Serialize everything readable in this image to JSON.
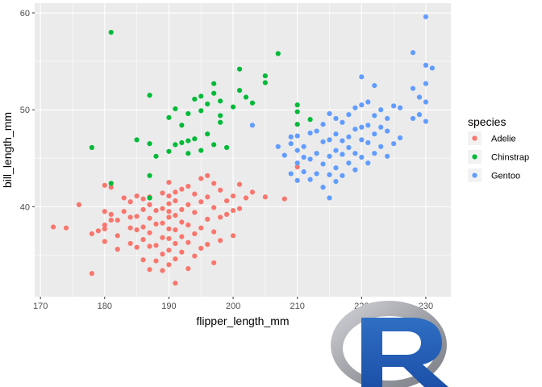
{
  "chart_data": {
    "type": "scatter",
    "xlabel": "flipper_length_mm",
    "ylabel": "bill_length_mm",
    "xlim": [
      169.1,
      233.9
    ],
    "ylim": [
      30.7,
      61.0
    ],
    "x_ticks": [
      170,
      180,
      190,
      200,
      210,
      220,
      230
    ],
    "y_ticks": [
      40,
      50,
      60
    ],
    "x_minor_ticks": [
      175,
      185,
      195,
      205,
      215,
      225
    ],
    "y_minor_ticks": [
      35,
      45,
      55
    ],
    "grid": true,
    "legend": {
      "title": "species",
      "position": "right"
    },
    "series": [
      {
        "name": "Adelie",
        "color": "#F8766D",
        "points": [
          [
            172,
            37.9
          ],
          [
            174,
            37.8
          ],
          [
            176,
            40.2
          ],
          [
            178,
            33.1
          ],
          [
            178,
            37.2
          ],
          [
            179,
            37.5
          ],
          [
            180,
            36.4
          ],
          [
            180,
            37.7
          ],
          [
            180,
            38.1
          ],
          [
            180,
            39.5
          ],
          [
            180,
            42.2
          ],
          [
            181,
            38.6
          ],
          [
            181,
            39.2
          ],
          [
            181,
            42.0
          ],
          [
            182,
            35.6
          ],
          [
            182,
            37.0
          ],
          [
            182,
            38.6
          ],
          [
            183,
            39.5
          ],
          [
            183,
            40.9
          ],
          [
            184,
            36.2
          ],
          [
            184,
            37.8
          ],
          [
            184,
            38.9
          ],
          [
            184,
            40.5
          ],
          [
            185,
            35.8
          ],
          [
            185,
            37.6
          ],
          [
            185,
            39.0
          ],
          [
            185,
            41.1
          ],
          [
            186,
            34.5
          ],
          [
            186,
            36.6
          ],
          [
            186,
            37.9
          ],
          [
            186,
            39.7
          ],
          [
            186,
            40.8
          ],
          [
            187,
            33.5
          ],
          [
            187,
            35.9
          ],
          [
            187,
            37.3
          ],
          [
            187,
            38.8
          ],
          [
            187,
            40.2
          ],
          [
            187,
            41.0
          ],
          [
            188,
            34.4
          ],
          [
            188,
            36.0
          ],
          [
            188,
            38.2
          ],
          [
            188,
            39.6
          ],
          [
            189,
            33.4
          ],
          [
            189,
            35.1
          ],
          [
            189,
            36.8
          ],
          [
            189,
            38.3
          ],
          [
            189,
            39.8
          ],
          [
            189,
            41.4
          ],
          [
            190,
            34.0
          ],
          [
            190,
            35.5
          ],
          [
            190,
            36.7
          ],
          [
            190,
            37.7
          ],
          [
            190,
            38.9
          ],
          [
            190,
            39.5
          ],
          [
            190,
            40.3
          ],
          [
            190,
            41.1
          ],
          [
            190,
            42.5
          ],
          [
            191,
            32.1
          ],
          [
            191,
            34.6
          ],
          [
            191,
            36.2
          ],
          [
            191,
            37.6
          ],
          [
            191,
            39.1
          ],
          [
            191,
            40.6
          ],
          [
            191,
            41.5
          ],
          [
            192,
            35.3
          ],
          [
            192,
            36.9
          ],
          [
            192,
            38.4
          ],
          [
            192,
            39.7
          ],
          [
            192,
            41.8
          ],
          [
            193,
            33.6
          ],
          [
            193,
            36.3
          ],
          [
            193,
            38.1
          ],
          [
            193,
            40.2
          ],
          [
            193,
            42.1
          ],
          [
            194,
            34.9
          ],
          [
            194,
            37.2
          ],
          [
            194,
            39.4
          ],
          [
            194,
            41.3
          ],
          [
            195,
            35.7
          ],
          [
            195,
            37.8
          ],
          [
            195,
            40.5
          ],
          [
            195,
            42.9
          ],
          [
            196,
            36.1
          ],
          [
            196,
            38.7
          ],
          [
            196,
            41.0
          ],
          [
            196,
            43.2
          ],
          [
            197,
            34.2
          ],
          [
            197,
            37.4
          ],
          [
            197,
            39.9
          ],
          [
            197,
            42.4
          ],
          [
            198,
            36.5
          ],
          [
            198,
            38.9
          ],
          [
            198,
            41.7
          ],
          [
            199,
            39.2
          ],
          [
            199,
            40.6
          ],
          [
            200,
            37.0
          ],
          [
            200,
            39.6
          ],
          [
            200,
            41.1
          ],
          [
            201,
            39.8
          ],
          [
            201,
            42.3
          ],
          [
            202,
            40.9
          ],
          [
            203,
            41.5
          ],
          [
            205,
            41.0
          ],
          [
            210,
            44.1
          ],
          [
            208,
            40.8
          ]
        ]
      },
      {
        "name": "Chinstrap",
        "color": "#00BA38",
        "points": [
          [
            178,
            46.1
          ],
          [
            181,
            58.0
          ],
          [
            181,
            42.4
          ],
          [
            185,
            46.9
          ],
          [
            187,
            40.9
          ],
          [
            187,
            43.2
          ],
          [
            187,
            51.5
          ],
          [
            187,
            46.5
          ],
          [
            188,
            45.2
          ],
          [
            190,
            45.7
          ],
          [
            190,
            49.2
          ],
          [
            191,
            46.4
          ],
          [
            191,
            50.1
          ],
          [
            192,
            46.6
          ],
          [
            192,
            48.4
          ],
          [
            193,
            46.8
          ],
          [
            193,
            49.6
          ],
          [
            193,
            45.5
          ],
          [
            194,
            51.1
          ],
          [
            194,
            47.0
          ],
          [
            195,
            51.4
          ],
          [
            195,
            45.8
          ],
          [
            195,
            49.9
          ],
          [
            196,
            50.6
          ],
          [
            196,
            47.5
          ],
          [
            197,
            51.7
          ],
          [
            197,
            52.7
          ],
          [
            197,
            46.4
          ],
          [
            198,
            50.9
          ],
          [
            198,
            49.4
          ],
          [
            199,
            46.1
          ],
          [
            200,
            50.3
          ],
          [
            201,
            52.0
          ],
          [
            202,
            51.3
          ],
          [
            205,
            53.5
          ],
          [
            205,
            52.8
          ],
          [
            207,
            55.8
          ],
          [
            210,
            50.5
          ],
          [
            210,
            48.5
          ],
          [
            212,
            49.0
          ],
          [
            210,
            49.8
          ],
          [
            203,
            50.7
          ],
          [
            201,
            54.2
          ],
          [
            198,
            48.7
          ]
        ]
      },
      {
        "name": "Gentoo",
        "color": "#619CFF",
        "points": [
          [
            203,
            48.4
          ],
          [
            207,
            46.2
          ],
          [
            208,
            45.3
          ],
          [
            209,
            43.4
          ],
          [
            209,
            46.5
          ],
          [
            209,
            47.2
          ],
          [
            210,
            42.7
          ],
          [
            210,
            44.5
          ],
          [
            210,
            45.8
          ],
          [
            210,
            47.3
          ],
          [
            211,
            43.6
          ],
          [
            211,
            45.1
          ],
          [
            211,
            46.2
          ],
          [
            212,
            42.8
          ],
          [
            212,
            44.9
          ],
          [
            212,
            47.6
          ],
          [
            213,
            43.4
          ],
          [
            213,
            45.5
          ],
          [
            213,
            47.8
          ],
          [
            214,
            42.0
          ],
          [
            214,
            44.4
          ],
          [
            214,
            46.7
          ],
          [
            214,
            48.5
          ],
          [
            215,
            40.9
          ],
          [
            215,
            43.3
          ],
          [
            215,
            45.2
          ],
          [
            215,
            46.9
          ],
          [
            215,
            49.6
          ],
          [
            216,
            42.6
          ],
          [
            216,
            44.0
          ],
          [
            216,
            45.8
          ],
          [
            216,
            47.5
          ],
          [
            216,
            49.1
          ],
          [
            217,
            43.2
          ],
          [
            217,
            45.4
          ],
          [
            217,
            46.8
          ],
          [
            217,
            48.7
          ],
          [
            218,
            44.5
          ],
          [
            218,
            46.1
          ],
          [
            218,
            47.2
          ],
          [
            218,
            49.5
          ],
          [
            219,
            43.8
          ],
          [
            219,
            45.5
          ],
          [
            219,
            48.0
          ],
          [
            219,
            50.2
          ],
          [
            220,
            45.1
          ],
          [
            220,
            46.9
          ],
          [
            220,
            48.2
          ],
          [
            220,
            50.5
          ],
          [
            220,
            53.4
          ],
          [
            221,
            44.5
          ],
          [
            221,
            46.6
          ],
          [
            221,
            48.4
          ],
          [
            221,
            50.8
          ],
          [
            222,
            45.5
          ],
          [
            222,
            47.5
          ],
          [
            222,
            49.4
          ],
          [
            222,
            52.5
          ],
          [
            223,
            46.2
          ],
          [
            223,
            48.2
          ],
          [
            223,
            50.0
          ],
          [
            224,
            45.2
          ],
          [
            224,
            47.8
          ],
          [
            224,
            49.1
          ],
          [
            225,
            46.5
          ],
          [
            225,
            50.4
          ],
          [
            226,
            47.1
          ],
          [
            226,
            50.2
          ],
          [
            228,
            49.1
          ],
          [
            228,
            52.2
          ],
          [
            228,
            55.9
          ],
          [
            229,
            49.5
          ],
          [
            229,
            51.3
          ],
          [
            230,
            48.8
          ],
          [
            230,
            50.8
          ],
          [
            230,
            52.7
          ],
          [
            230,
            54.6
          ],
          [
            230,
            59.6
          ],
          [
            231,
            54.3
          ]
        ]
      }
    ]
  },
  "logo": {
    "name": "r-logo",
    "letter": "R"
  }
}
